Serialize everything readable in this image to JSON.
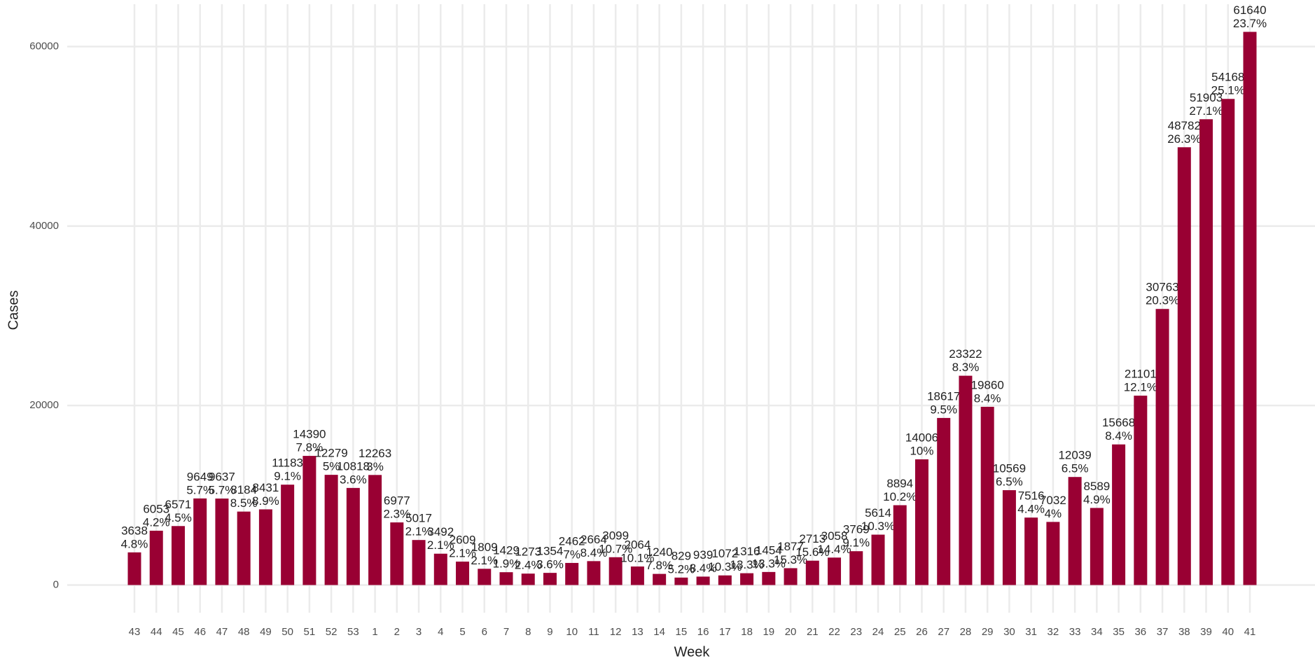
{
  "chart_data": {
    "type": "bar",
    "x_label": "Week",
    "y_label": "Cases",
    "categories": [
      "43",
      "44",
      "45",
      "46",
      "47",
      "48",
      "49",
      "50",
      "51",
      "52",
      "53",
      "1",
      "2",
      "3",
      "4",
      "5",
      "6",
      "7",
      "8",
      "9",
      "10",
      "11",
      "12",
      "13",
      "14",
      "15",
      "16",
      "17",
      "18",
      "19",
      "20",
      "21",
      "22",
      "23",
      "24",
      "25",
      "26",
      "27",
      "28",
      "29",
      "30",
      "31",
      "32",
      "33",
      "34",
      "35",
      "36",
      "37",
      "38",
      "39",
      "40",
      "41"
    ],
    "values": [
      3638,
      6053,
      6571,
      9649,
      9637,
      8184,
      8431,
      11183,
      14390,
      12279,
      10818,
      12263,
      6977,
      5017,
      3492,
      2609,
      1809,
      1429,
      1273,
      1354,
      2462,
      2664,
      3099,
      2064,
      1240,
      829,
      939,
      1072,
      1316,
      1454,
      1877,
      2713,
      3058,
      3769,
      5614,
      8894,
      14006,
      18617,
      23322,
      19860,
      10569,
      7516,
      7032,
      12039,
      8589,
      15668,
      21101,
      30763,
      48782,
      51903,
      54168,
      61640
    ],
    "percent_labels": [
      "4.8%",
      "4.2%",
      "4.5%",
      "5.7%",
      "5.7%",
      "8.5%",
      "8.9%",
      "9.1%",
      "7.8%",
      "5%",
      "3.6%",
      "3%",
      "2.3%",
      "2.1%",
      "2.1%",
      "2.1%",
      "2.1%",
      "1.9%",
      "2.4%",
      "3.6%",
      "7%",
      "8.4%",
      "10.7%",
      "10.1%",
      "7.8%",
      "5.2%",
      "8.4%",
      "10.3%",
      "13.3%",
      "13.3%",
      "15.3%",
      "15.6%",
      "14.4%",
      "9.1%",
      "10.3%",
      "10.2%",
      "10%",
      "9.5%",
      "8.3%",
      "8.4%",
      "6.5%",
      "4.4%",
      "4%",
      "6.5%",
      "4.9%",
      "8.4%",
      "12.1%",
      "20.3%",
      "26.3%",
      "27.1%",
      "25.1%",
      "23.7%"
    ],
    "color": "#990033",
    "ylim": [
      -3082,
      64722
    ],
    "yticks": [
      0,
      20000,
      40000,
      60000
    ],
    "grid": true
  }
}
